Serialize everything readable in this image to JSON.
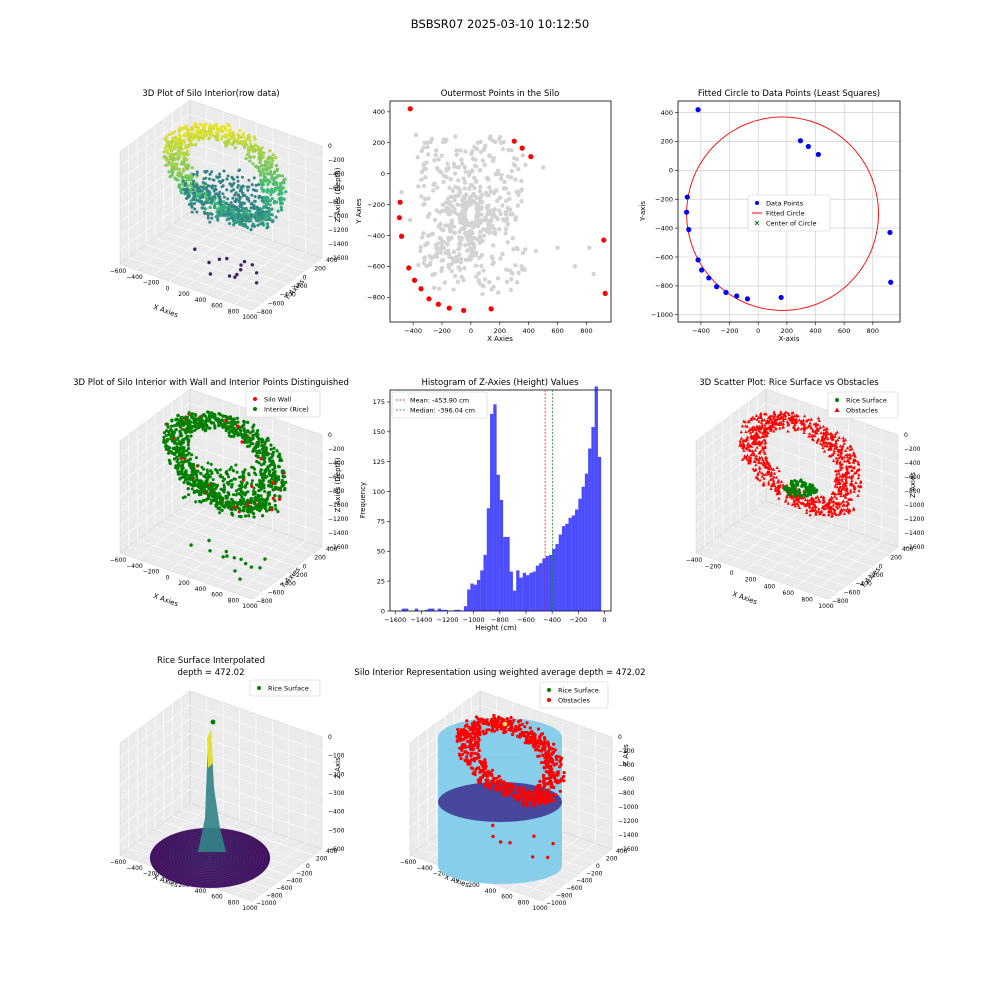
{
  "figure_title": "BSBSR07 2025-03-10 10:12:50",
  "colors": {
    "viridis": [
      "#440154",
      "#31688e",
      "#35b779",
      "#fde725"
    ],
    "wall": "#ff0000",
    "rice": "#008000",
    "gray": "#d3d3d3",
    "hist": "#0000ff",
    "sky": "#87ceeb",
    "indigo": "#3b2f8f"
  },
  "chart_data": [
    {
      "id": "raw3d",
      "type": "scatter3d",
      "title": "3D Plot of Silo Interior(row data)",
      "xlabel": "X Axies",
      "ylabel": "Y Axies",
      "zlabel": "Z Axies (Depth)",
      "xticks": [
        "−600",
        "−400",
        "−200",
        "0",
        "200",
        "400",
        "600",
        "800",
        "1000"
      ],
      "yticks": [
        "400",
        "200",
        "0",
        "−200",
        "−400",
        "−600",
        "−800"
      ],
      "zticks": [
        "0",
        "−200",
        "−400",
        "−600",
        "−800",
        "−1000",
        "−1200",
        "−1400",
        "−1600"
      ],
      "colormap": "viridis"
    },
    {
      "id": "outer",
      "type": "scatter",
      "title": "Outermost Points in the Silo",
      "xlabel": "X Axies",
      "ylabel": "Y Axies",
      "xlim": [
        -560,
        970
      ],
      "ylim": [
        -960,
        470
      ],
      "xticks": [
        -400,
        -200,
        0,
        200,
        400,
        600,
        800
      ],
      "yticks": [
        -800,
        -600,
        -400,
        -200,
        0,
        200,
        400
      ],
      "outermost": [
        [
          -420,
          420
        ],
        [
          -490,
          -185
        ],
        [
          -495,
          -285
        ],
        [
          -480,
          -405
        ],
        [
          -430,
          -610
        ],
        [
          -390,
          -690
        ],
        [
          -345,
          -745
        ],
        [
          -290,
          -810
        ],
        [
          -225,
          -845
        ],
        [
          -150,
          -870
        ],
        [
          -50,
          -885
        ],
        [
          140,
          -875
        ],
        [
          300,
          210
        ],
        [
          355,
          165
        ],
        [
          415,
          110
        ],
        [
          920,
          -430
        ],
        [
          930,
          -775
        ]
      ],
      "interior_gray_sample": [
        [
          -380,
          250
        ],
        [
          -300,
          200
        ],
        [
          -100,
          150
        ],
        [
          100,
          180
        ],
        [
          300,
          100
        ],
        [
          500,
          40
        ],
        [
          -480,
          -120
        ],
        [
          -420,
          -300
        ],
        [
          -350,
          -500
        ],
        [
          -250,
          -650
        ],
        [
          -120,
          -750
        ],
        [
          80,
          -780
        ],
        [
          250,
          -700
        ],
        [
          350,
          -600
        ],
        [
          450,
          -500
        ],
        [
          600,
          -480
        ],
        [
          720,
          -600
        ],
        [
          820,
          -480
        ],
        [
          850,
          -650
        ]
      ]
    },
    {
      "id": "circle",
      "type": "scatter",
      "title": "Fitted Circle to Data Points (Least Squares)",
      "xlabel": "X-axis",
      "ylabel": "Y-axis",
      "xlim": [
        -560,
        990
      ],
      "ylim": [
        -1050,
        480
      ],
      "xticks": [
        -400,
        -200,
        0,
        200,
        400,
        600,
        800
      ],
      "yticks": [
        -1000,
        -800,
        -600,
        -400,
        -200,
        0,
        200,
        400
      ],
      "legend": [
        "Data Points",
        "Fitted Circle",
        "Center of Circle"
      ],
      "circle": {
        "cx": 170,
        "cy": -300,
        "r": 670
      },
      "points": [
        [
          -420,
          420
        ],
        [
          -495,
          -185
        ],
        [
          -500,
          -290
        ],
        [
          -485,
          -410
        ],
        [
          -420,
          -620
        ],
        [
          -395,
          -690
        ],
        [
          -345,
          -745
        ],
        [
          -290,
          -805
        ],
        [
          -225,
          -845
        ],
        [
          -150,
          -870
        ],
        [
          -75,
          -890
        ],
        [
          160,
          -880
        ],
        [
          295,
          205
        ],
        [
          350,
          165
        ],
        [
          420,
          110
        ],
        [
          920,
          -430
        ],
        [
          925,
          -775
        ]
      ]
    },
    {
      "id": "wall3d",
      "type": "scatter3d",
      "title": "3D Plot of Silo Interior with Wall and Interior Points Distinguished",
      "xlabel": "X Axies",
      "ylabel": "Y Axies",
      "zlabel": "Z Axies (Depth)",
      "legend": [
        "Silo Wall",
        "Interior (Rice)"
      ],
      "xticks": [
        "−600",
        "−400",
        "−200",
        "0",
        "200",
        "400",
        "600",
        "800",
        "1000"
      ],
      "yticks": [
        "400",
        "200",
        "0",
        "−200",
        "−400",
        "−600",
        "−800"
      ],
      "zticks": [
        "0",
        "−200",
        "−400",
        "−600",
        "−800",
        "−1000",
        "−1200",
        "−1400",
        "−1600"
      ]
    },
    {
      "id": "hist",
      "type": "bar",
      "title": "Histogram of Z-Axies (Height) Values",
      "xlabel": "Height (cm)",
      "ylabel": "Frequency",
      "xlim": [
        -1640,
        50
      ],
      "ylim": [
        0,
        185
      ],
      "xticks": [
        -1600,
        -1400,
        -1200,
        -1000,
        -800,
        -600,
        -400,
        -200,
        0
      ],
      "yticks": [
        0,
        25,
        50,
        75,
        100,
        125,
        150,
        175
      ],
      "bin_width": 25,
      "bins": [
        [
          -1550,
          2
        ],
        [
          -1525,
          2
        ],
        [
          -1450,
          2
        ],
        [
          -1375,
          1
        ],
        [
          -1350,
          2
        ],
        [
          -1325,
          2
        ],
        [
          -1275,
          2
        ],
        [
          -1250,
          1
        ],
        [
          -1225,
          1
        ],
        [
          -1150,
          1
        ],
        [
          -1125,
          1
        ],
        [
          -1075,
          4
        ],
        [
          -1050,
          18
        ],
        [
          -1025,
          23
        ],
        [
          -1000,
          22
        ],
        [
          -975,
          26
        ],
        [
          -950,
          34
        ],
        [
          -925,
          47
        ],
        [
          -900,
          86
        ],
        [
          -875,
          165
        ],
        [
          -850,
          173
        ],
        [
          -825,
          114
        ],
        [
          -800,
          93
        ],
        [
          -775,
          62
        ],
        [
          -750,
          62
        ],
        [
          -725,
          33
        ],
        [
          -700,
          17
        ],
        [
          -675,
          34
        ],
        [
          -650,
          28
        ],
        [
          -625,
          32
        ],
        [
          -600,
          30
        ],
        [
          -575,
          32
        ],
        [
          -550,
          33
        ],
        [
          -525,
          38
        ],
        [
          -500,
          40
        ],
        [
          -475,
          44
        ],
        [
          -450,
          46
        ],
        [
          -425,
          47
        ],
        [
          -400,
          52
        ],
        [
          -375,
          56
        ],
        [
          -350,
          64
        ],
        [
          -325,
          71
        ],
        [
          -300,
          73
        ],
        [
          -275,
          78
        ],
        [
          -250,
          80
        ],
        [
          -225,
          85
        ],
        [
          -200,
          94
        ],
        [
          -175,
          104
        ],
        [
          -150,
          115
        ],
        [
          -125,
          136
        ],
        [
          -100,
          154
        ],
        [
          -75,
          188
        ],
        [
          -50,
          129
        ]
      ],
      "mean": -453.9,
      "median": -396.04,
      "legend": [
        "Mean: -453.90 cm",
        "Median: -396.04 cm"
      ]
    },
    {
      "id": "obst3d",
      "type": "scatter3d",
      "title": "3D Scatter Plot: Rice Surface vs Obstacles",
      "xlabel": "X Axies",
      "ylabel": "Y Axies",
      "zlabel": "Z Axies",
      "legend": [
        "Rice Surface",
        "Obstacles"
      ],
      "xticks": [
        "−400",
        "−200",
        "0",
        "200",
        "400",
        "600",
        "800",
        "1000"
      ],
      "yticks": [
        "400",
        "200",
        "0",
        "−200",
        "−400",
        "−600",
        "−800"
      ],
      "zticks": [
        "0",
        "−200",
        "−400",
        "−600",
        "−800",
        "−1000",
        "−1200",
        "−1400",
        "−1600"
      ]
    },
    {
      "id": "surf3d",
      "type": "surface3d",
      "title": "Rice Surface Interpolated",
      "subtitle": "depth = 472.02",
      "xlabel": "X Axies",
      "ylabel": "Y Axis",
      "zlabel": "Z Axis",
      "legend": [
        "Rice Surface"
      ],
      "xticks": [
        "−600",
        "−400",
        "−200",
        "0",
        "200",
        "400",
        "600",
        "800",
        "1000"
      ],
      "yticks": [
        "400",
        "200",
        "0",
        "−200",
        "−400",
        "−600",
        "−800",
        "−1000"
      ],
      "zticks": [
        "0",
        "−100",
        "−200",
        "−300",
        "−400",
        "−500",
        "−600"
      ]
    },
    {
      "id": "cyl3d",
      "type": "surface3d",
      "title": "Silo Interior Representation using weighted average depth = 472.02",
      "xlabel": "X Axies",
      "ylabel": "Y Axies",
      "zlabel": "Z Axis",
      "legend": [
        "Rice Surface",
        "Obstacles"
      ],
      "xticks": [
        "−600",
        "−400",
        "−200",
        "0",
        "200",
        "400",
        "600",
        "800",
        "1000"
      ],
      "yticks": [
        "400",
        "200",
        "0",
        "−200",
        "−400",
        "−600",
        "−800",
        "−1000"
      ],
      "zticks": [
        "0",
        "−200",
        "−400",
        "−600",
        "−800",
        "−1000",
        "−1200",
        "−1400",
        "−1600"
      ]
    }
  ]
}
